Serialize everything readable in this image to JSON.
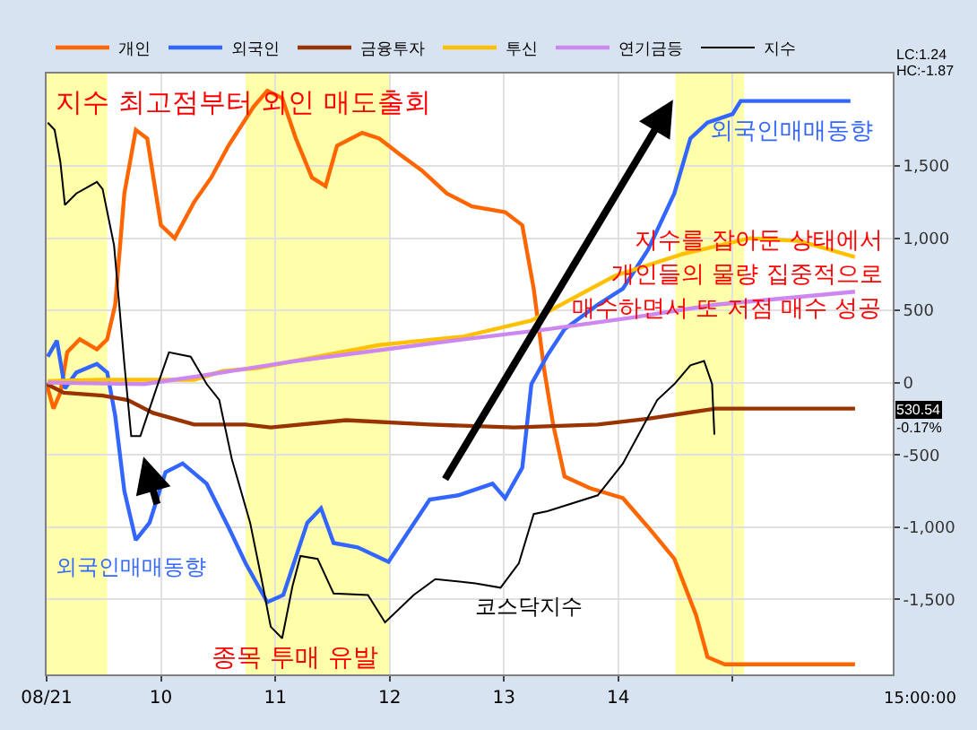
{
  "chart_data": {
    "type": "line",
    "xlim": [
      9,
      16.4
    ],
    "xticks": [
      {
        "value": 9,
        "label": "08/21"
      },
      10,
      11,
      12,
      13,
      14,
      {
        "value": 15,
        "label": null
      }
    ],
    "ylim": [
      -2020,
      2140
    ],
    "yticks": [
      {
        "value": 1500,
        "label": "1,500"
      },
      {
        "value": 1000,
        "label": "1,000"
      },
      500,
      0,
      -500,
      {
        "value": -1000,
        "label": "-1,000"
      },
      {
        "value": -1500,
        "label": "-1,500"
      }
    ],
    "grid": true,
    "legend": "top left",
    "series": [
      {
        "name": "개인",
        "color": "#ff6600",
        "x": [
          9.0,
          9.06,
          9.12,
          9.18,
          9.29,
          9.44,
          9.53,
          9.6,
          9.68,
          9.78,
          9.88,
          10.0,
          10.12,
          10.29,
          10.44,
          10.59,
          10.81,
          10.93,
          11.06,
          11.18,
          11.32,
          11.44,
          11.54,
          11.76,
          11.91,
          12.09,
          12.28,
          12.5,
          12.72,
          13.01,
          13.16,
          13.26,
          13.35,
          13.43,
          13.53,
          13.75,
          14.04,
          14.26,
          14.49,
          14.68,
          14.78,
          14.93,
          16.07
        ],
        "values": [
          -10,
          -180,
          -70,
          210,
          300,
          230,
          300,
          540,
          1310,
          1750,
          1690,
          1090,
          1000,
          1250,
          1420,
          1640,
          1910,
          2020,
          1970,
          1690,
          1420,
          1360,
          1640,
          1730,
          1690,
          1580,
          1470,
          1310,
          1220,
          1180,
          1090,
          650,
          100,
          -290,
          -650,
          -730,
          -800,
          -1000,
          -1220,
          -1610,
          -1900,
          -1950,
          -1950
        ]
      },
      {
        "name": "외국인",
        "color": "#3366ff",
        "x": [
          9.01,
          9.09,
          9.16,
          9.26,
          9.44,
          9.53,
          9.6,
          9.68,
          9.78,
          9.9,
          10.04,
          10.19,
          10.4,
          10.59,
          10.74,
          10.93,
          11.07,
          11.28,
          11.4,
          11.51,
          11.72,
          11.99,
          12.35,
          12.6,
          12.9,
          13.01,
          13.16,
          13.24,
          13.38,
          13.53,
          13.82,
          14.04,
          14.26,
          14.49,
          14.63,
          14.78,
          15.0,
          15.07,
          16.03
        ],
        "values": [
          180,
          290,
          -40,
          70,
          130,
          70,
          -230,
          -750,
          -1090,
          -970,
          -620,
          -560,
          -700,
          -1000,
          -1250,
          -1520,
          -1470,
          -970,
          -870,
          -1110,
          -1140,
          -1240,
          -810,
          -780,
          -700,
          -800,
          -590,
          -10,
          190,
          370,
          540,
          650,
          920,
          1310,
          1690,
          1800,
          1860,
          1950,
          1950
        ]
      },
      {
        "name": "금융투자",
        "color": "#993300",
        "x": [
          9.0,
          9.15,
          9.49,
          9.71,
          9.93,
          10.29,
          10.74,
          10.96,
          11.62,
          12.35,
          13.09,
          13.82,
          14.26,
          14.85,
          16.07
        ],
        "values": [
          -10,
          -70,
          -90,
          -120,
          -210,
          -290,
          -290,
          -310,
          -260,
          -290,
          -310,
          -290,
          -250,
          -180,
          -180
        ]
      },
      {
        "name": "투신",
        "color": "#ffc000",
        "x": [
          9.01,
          9.46,
          9.96,
          10.29,
          10.54,
          10.84,
          11.43,
          11.91,
          12.65,
          13.24,
          13.97,
          14.56,
          15.15,
          15.59,
          16.07
        ],
        "values": [
          10,
          20,
          20,
          20,
          80,
          100,
          190,
          260,
          320,
          430,
          740,
          890,
          1000,
          980,
          870
        ]
      },
      {
        "name": "연기금등",
        "color": "#cc88ee",
        "x": [
          9.01,
          9.85,
          10.29,
          11.18,
          12.65,
          13.38,
          14.12,
          14.85,
          16.07
        ],
        "values": [
          0,
          -10,
          40,
          150,
          300,
          370,
          450,
          540,
          630
        ]
      },
      {
        "name": "지수",
        "color": "#000000",
        "x": [
          9.01,
          9.07,
          9.12,
          9.16,
          9.26,
          9.44,
          9.49,
          9.59,
          9.68,
          9.74,
          9.82,
          9.96,
          10.07,
          10.26,
          10.4,
          10.51,
          10.62,
          10.78,
          10.88,
          10.96,
          11.06,
          11.15,
          11.22,
          11.37,
          11.51,
          11.81,
          11.96,
          12.21,
          12.4,
          12.75,
          12.97,
          13.13,
          13.26,
          13.38,
          13.82,
          14.04,
          14.19,
          14.34,
          14.49,
          14.63,
          14.75,
          14.82,
          14.84
        ],
        "values": [
          1800,
          1750,
          1530,
          1230,
          1310,
          1390,
          1340,
          950,
          130,
          -370,
          -370,
          -40,
          210,
          180,
          -10,
          -120,
          -530,
          -970,
          -1360,
          -1690,
          -1770,
          -1410,
          -1200,
          -1220,
          -1460,
          -1470,
          -1660,
          -1470,
          -1360,
          -1390,
          -1420,
          -1250,
          -910,
          -890,
          -780,
          -560,
          -340,
          -120,
          -10,
          120,
          150,
          -10,
          -360
        ]
      }
    ],
    "bands": [
      {
        "axis": "x",
        "from": 9.0,
        "to": 9.53,
        "color": "#ffffaa"
      },
      {
        "axis": "x",
        "from": 10.74,
        "to": 12.0,
        "color": "#ffffaa"
      },
      {
        "axis": "x",
        "from": 14.5,
        "to": 15.1,
        "color": "#ffffaa"
      }
    ],
    "annotations": [
      "지수 최고점부터 외인 매도출회",
      "지수를 잡아둔 상태에서",
      "개인들의 물량 집중적으로",
      "매수하면서 또 저점 매수 성공",
      "외국인매매동향",
      "외국인매매동향",
      "종목 투매 유발",
      "코스닥지수",
      "LC:1.24",
      "HC:-1.87",
      "530.54",
      "-0.17%",
      "15:00:00"
    ]
  }
}
